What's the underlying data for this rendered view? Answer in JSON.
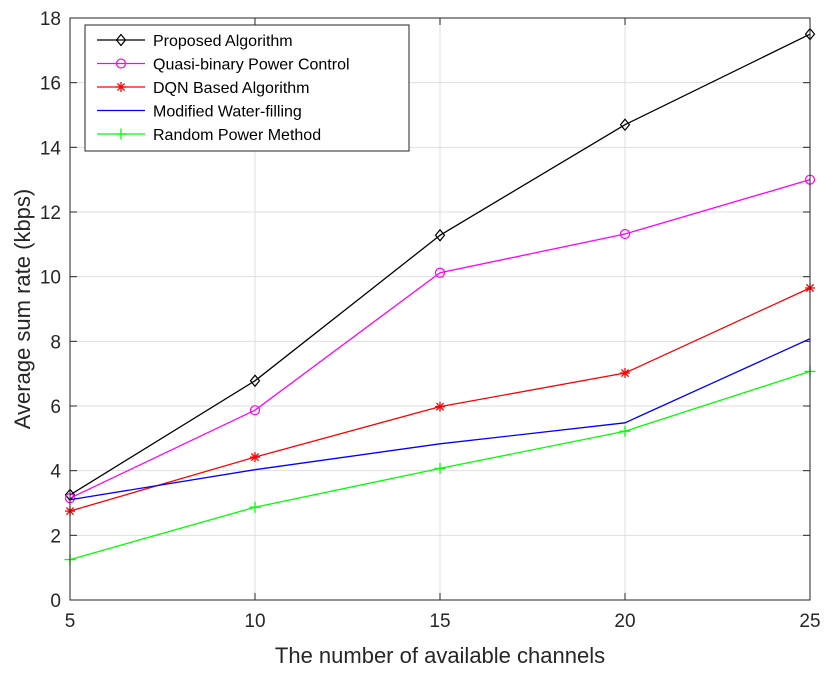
{
  "chart_data": {
    "type": "line",
    "xlabel": "The number of available channels",
    "ylabel": "Average sum rate (kbps)",
    "xlim": [
      5,
      25
    ],
    "ylim": [
      0,
      18
    ],
    "x": [
      5,
      10,
      15,
      20,
      25
    ],
    "xticks": [
      5,
      10,
      15,
      20,
      25
    ],
    "yticks": [
      0,
      2,
      4,
      6,
      8,
      10,
      12,
      14,
      16,
      18
    ],
    "grid": true,
    "legend_position": "top-left",
    "series": [
      {
        "name": "Proposed Algorithm",
        "values": [
          3.25,
          6.78,
          11.28,
          14.7,
          17.5
        ],
        "color": "#000000",
        "marker": "diamond"
      },
      {
        "name": "Quasi-binary Power Control",
        "values": [
          3.15,
          5.87,
          10.12,
          11.32,
          13.0
        ],
        "color": "#ff00ff",
        "marker": "circle"
      },
      {
        "name": "DQN Based Algorithm",
        "values": [
          2.75,
          4.42,
          5.98,
          7.02,
          9.65
        ],
        "color": "#ff0000",
        "marker": "asterisk"
      },
      {
        "name": "Modified Water-filling",
        "values": [
          3.1,
          4.03,
          4.83,
          5.48,
          8.08
        ],
        "color": "#0000ff",
        "marker": "none"
      },
      {
        "name": "Random Power Method",
        "values": [
          1.25,
          2.87,
          4.07,
          5.22,
          7.07
        ],
        "color": "#00ff00",
        "marker": "plus"
      }
    ]
  }
}
